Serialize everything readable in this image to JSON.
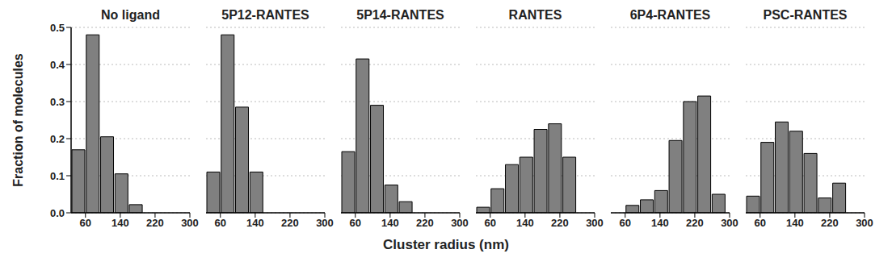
{
  "chart_data": [
    {
      "type": "histogram",
      "title": "No ligand",
      "ylabel": "Fraction of molecules",
      "xlabel": "Cluster radius (nm)",
      "bins": [
        27,
        60,
        93,
        126,
        159,
        192
      ],
      "values": [
        0.17,
        0.48,
        0.205,
        0.105,
        0.022
      ],
      "color": "#808080",
      "xlim": [
        27,
        300
      ],
      "xticks": [
        60,
        140,
        220,
        300
      ],
      "ylim": [
        0,
        0.5
      ],
      "yticks": [
        {
          "value": 0,
          "label": "0.0"
        },
        {
          "value": 0.1,
          "label": "0.1"
        },
        {
          "value": 0.2,
          "label": "0.2"
        },
        {
          "value": 0.3,
          "label": "0.3"
        },
        {
          "value": 0.4,
          "label": "0.4"
        },
        {
          "value": 0.5,
          "label": "0.5"
        }
      ],
      "grid": true
    },
    {
      "type": "histogram",
      "title": "5P12-RANTES",
      "bins": [
        27,
        60,
        93,
        126,
        159
      ],
      "values": [
        0.11,
        0.48,
        0.285,
        0.11
      ],
      "color": "#808080",
      "xlim": [
        27,
        300
      ],
      "xticks": [
        60,
        140,
        220,
        300
      ],
      "ylim": [
        0,
        0.5
      ],
      "yticks": [
        0,
        0.1,
        0.2,
        0.3,
        0.4,
        0.5
      ],
      "grid": true,
      "tick_labels": "x"
    },
    {
      "type": "histogram",
      "title": "5P14-RANTES",
      "bins": [
        27,
        60,
        93,
        126,
        159,
        192
      ],
      "values": [
        0.165,
        0.415,
        0.29,
        0.075,
        0.03
      ],
      "color": "#808080",
      "xlim": [
        27,
        300
      ],
      "xticks": [
        60,
        140,
        220,
        300
      ],
      "ylim": [
        0,
        0.5
      ],
      "yticks": [
        0,
        0.1,
        0.2,
        0.3,
        0.4,
        0.5
      ],
      "grid": true,
      "tick_labels": "x"
    },
    {
      "type": "histogram",
      "title": "RANTES",
      "bins": [
        27,
        60,
        93,
        126,
        159,
        192,
        225,
        258
      ],
      "values": [
        0.015,
        0.065,
        0.13,
        0.15,
        0.225,
        0.24,
        0.15
      ],
      "color": "#808080",
      "xlim": [
        27,
        300
      ],
      "xticks": [
        60,
        140,
        220,
        300
      ],
      "ylim": [
        0,
        0.5
      ],
      "yticks": [
        0,
        0.1,
        0.2,
        0.3,
        0.4,
        0.5
      ],
      "grid": true,
      "tick_labels": "x"
    },
    {
      "type": "histogram",
      "title": "6P4-RANTES",
      "bins": [
        60,
        93,
        126,
        159,
        192,
        225,
        258,
        291
      ],
      "values": [
        0.02,
        0.035,
        0.06,
        0.195,
        0.3,
        0.315,
        0.05
      ],
      "color": "#808080",
      "xlim": [
        27,
        300
      ],
      "xticks": [
        60,
        140,
        220,
        300
      ],
      "ylim": [
        0,
        0.5
      ],
      "yticks": [
        0,
        0.1,
        0.2,
        0.3,
        0.4,
        0.5
      ],
      "grid": true,
      "tick_labels": "x"
    },
    {
      "type": "histogram",
      "title": "PSC-RANTES",
      "bins": [
        27,
        60,
        93,
        126,
        159,
        192,
        225,
        258
      ],
      "values": [
        0.045,
        0.19,
        0.245,
        0.22,
        0.16,
        0.04,
        0.08
      ],
      "color": "#808080",
      "xlim": [
        27,
        300
      ],
      "xticks": [
        60,
        140,
        220,
        300
      ],
      "ylim": [
        0,
        0.5
      ],
      "yticks": [
        0,
        0.1,
        0.2,
        0.3,
        0.4,
        0.5
      ],
      "grid": true,
      "tick_labels": "x"
    }
  ]
}
